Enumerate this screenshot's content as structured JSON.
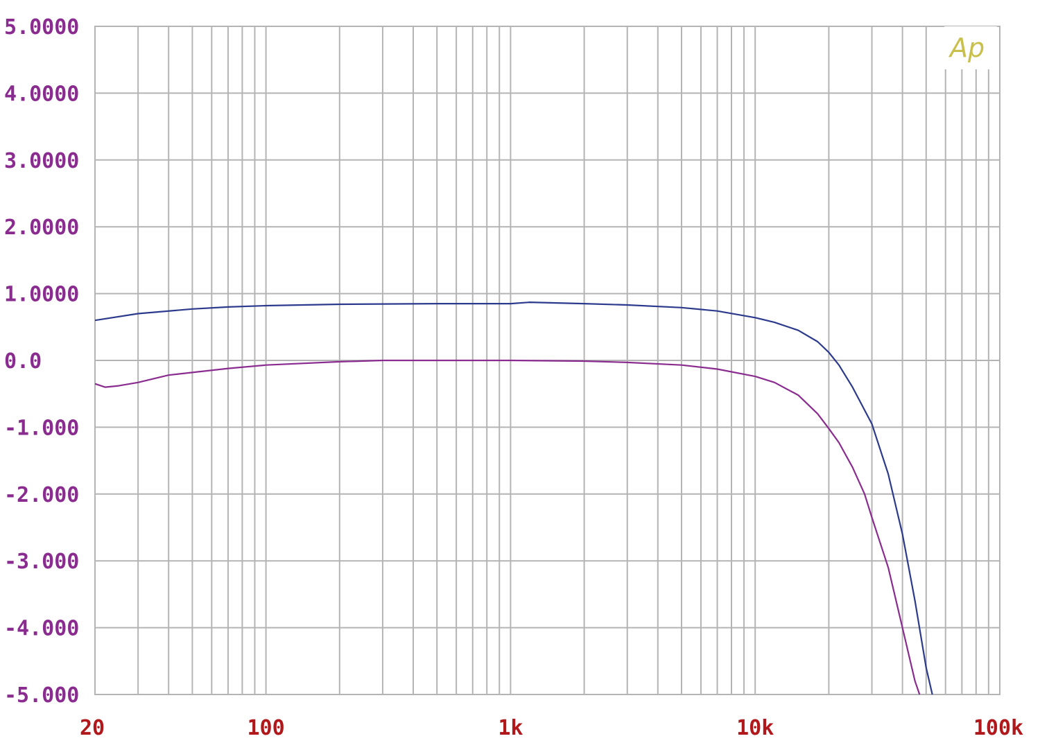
{
  "chart_data": {
    "type": "line",
    "title": "",
    "xlabel": "",
    "ylabel": "",
    "x_scale": "log",
    "xlim": [
      20,
      100000
    ],
    "ylim": [
      -5,
      5
    ],
    "grid": true,
    "logo_text": "Ap",
    "x_tick_labels": [
      {
        "value": 20,
        "label": "20"
      },
      {
        "value": 100,
        "label": "100"
      },
      {
        "value": 1000,
        "label": "1k"
      },
      {
        "value": 10000,
        "label": "10k"
      },
      {
        "value": 100000,
        "label": "100k"
      }
    ],
    "y_tick_labels": [
      {
        "value": 5,
        "label": "5.0000"
      },
      {
        "value": 4,
        "label": "4.0000"
      },
      {
        "value": 3,
        "label": "3.0000"
      },
      {
        "value": 2,
        "label": "2.0000"
      },
      {
        "value": 1,
        "label": "1.0000"
      },
      {
        "value": 0,
        "label": "0.0"
      },
      {
        "value": -1,
        "label": "-1.000"
      },
      {
        "value": -2,
        "label": "-2.000"
      },
      {
        "value": -3,
        "label": "-3.000"
      },
      {
        "value": -4,
        "label": "-4.000"
      },
      {
        "value": -5,
        "label": "-5.000"
      }
    ],
    "series": [
      {
        "color": "#2b3a8c",
        "points": [
          [
            20,
            0.6
          ],
          [
            30,
            0.7
          ],
          [
            50,
            0.77
          ],
          [
            70,
            0.8
          ],
          [
            100,
            0.82
          ],
          [
            200,
            0.84
          ],
          [
            500,
            0.85
          ],
          [
            1000,
            0.85
          ],
          [
            1200,
            0.87
          ],
          [
            2000,
            0.85
          ],
          [
            3000,
            0.83
          ],
          [
            5000,
            0.79
          ],
          [
            7000,
            0.74
          ],
          [
            10000,
            0.64
          ],
          [
            12000,
            0.57
          ],
          [
            15000,
            0.45
          ],
          [
            18000,
            0.28
          ],
          [
            20000,
            0.12
          ],
          [
            22000,
            -0.07
          ],
          [
            25000,
            -0.4
          ],
          [
            30000,
            -0.95
          ],
          [
            35000,
            -1.7
          ],
          [
            40000,
            -2.6
          ],
          [
            45000,
            -3.6
          ],
          [
            50000,
            -4.6
          ],
          [
            53000,
            -5.0
          ]
        ]
      },
      {
        "color": "#8a2c8f",
        "points": [
          [
            20,
            -0.35
          ],
          [
            22,
            -0.4
          ],
          [
            25,
            -0.38
          ],
          [
            30,
            -0.33
          ],
          [
            40,
            -0.22
          ],
          [
            50,
            -0.18
          ],
          [
            70,
            -0.12
          ],
          [
            100,
            -0.07
          ],
          [
            200,
            -0.02
          ],
          [
            300,
            0.0
          ],
          [
            1000,
            0.0
          ],
          [
            2000,
            -0.01
          ],
          [
            3000,
            -0.03
          ],
          [
            5000,
            -0.07
          ],
          [
            7000,
            -0.13
          ],
          [
            10000,
            -0.24
          ],
          [
            12000,
            -0.33
          ],
          [
            15000,
            -0.52
          ],
          [
            18000,
            -0.8
          ],
          [
            20000,
            -1.02
          ],
          [
            22000,
            -1.23
          ],
          [
            25000,
            -1.6
          ],
          [
            28000,
            -2.0
          ],
          [
            30000,
            -2.35
          ],
          [
            35000,
            -3.1
          ],
          [
            40000,
            -4.0
          ],
          [
            45000,
            -4.8
          ],
          [
            47000,
            -5.0
          ]
        ]
      }
    ]
  }
}
